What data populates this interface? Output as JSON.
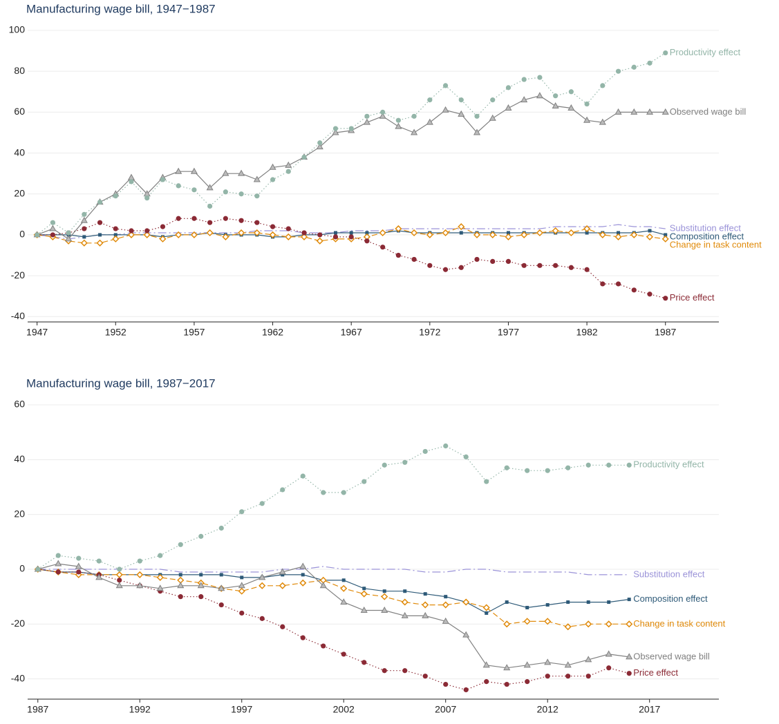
{
  "chart_data": [
    {
      "type": "line",
      "title": "Manufacturing wage bill, 1947−1987",
      "grid": true,
      "x": [
        1947,
        1948,
        1949,
        1950,
        1951,
        1952,
        1953,
        1954,
        1955,
        1956,
        1957,
        1958,
        1959,
        1960,
        1961,
        1962,
        1963,
        1964,
        1965,
        1966,
        1967,
        1968,
        1969,
        1970,
        1971,
        1972,
        1973,
        1974,
        1975,
        1976,
        1977,
        1978,
        1979,
        1980,
        1981,
        1982,
        1983,
        1984,
        1985,
        1986,
        1987
      ],
      "xlim": [
        1946.4,
        1990.4
      ],
      "xticks": [
        1947,
        1952,
        1957,
        1962,
        1967,
        1972,
        1977,
        1982,
        1987
      ],
      "ylim": [
        -42.6,
        100
      ],
      "yticks": [
        -40,
        -20,
        0,
        20,
        40,
        60,
        80,
        100
      ],
      "series": [
        {
          "name": "Substitution effect",
          "color": "#9a92d8",
          "marker": "none",
          "dash": "dashdot",
          "values": [
            0,
            -1,
            -2,
            -1,
            0,
            0,
            1,
            1,
            1,
            1,
            1,
            1,
            1,
            1,
            2,
            2,
            2,
            1,
            1,
            1,
            2,
            2,
            2,
            3,
            3,
            3,
            3,
            3,
            3,
            3,
            3,
            3,
            3,
            4,
            4,
            4,
            4,
            5,
            4,
            4,
            3
          ]
        },
        {
          "name": "Composition effect",
          "color": "#2e5a78",
          "marker": "square",
          "dash": "solid",
          "values": [
            0,
            0,
            0,
            -1,
            0,
            0,
            0,
            0,
            -1,
            0,
            0,
            1,
            0,
            0,
            0,
            -1,
            -1,
            0,
            0,
            1,
            1,
            1,
            1,
            2,
            1,
            1,
            1,
            1,
            1,
            1,
            1,
            1,
            1,
            1,
            1,
            1,
            1,
            1,
            1,
            2,
            0
          ]
        },
        {
          "name": "Change in task content",
          "color": "#e08a0a",
          "marker": "diamond",
          "dash": "dash",
          "values": [
            0,
            -1,
            -3,
            -4,
            -4,
            -2,
            0,
            0,
            -2,
            0,
            0,
            1,
            -1,
            1,
            1,
            0,
            -1,
            -1,
            -3,
            -2,
            -2,
            -1,
            1,
            3,
            1,
            0,
            1,
            4,
            0,
            0,
            -1,
            0,
            1,
            2,
            1,
            3,
            0,
            -1,
            0,
            -1,
            -2
          ]
        },
        {
          "name": "Price effect",
          "color": "#8b2a35",
          "marker": "circle",
          "dash": "dot",
          "values": [
            0,
            0,
            1,
            3,
            6,
            3,
            2,
            2,
            4,
            8,
            8,
            6,
            8,
            7,
            6,
            4,
            3,
            1,
            0,
            -1,
            -1,
            -3,
            -6,
            -10,
            -12,
            -15,
            -17,
            -16,
            -12,
            -13,
            -13,
            -15,
            -15,
            -15,
            -16,
            -17,
            -24,
            -24,
            -27,
            -29,
            -31
          ]
        },
        {
          "name": "Observed wage bill",
          "color": "#808080",
          "marker": "triangle",
          "dash": "solid",
          "values": [
            0,
            3,
            -2,
            7,
            16,
            20,
            28,
            20,
            28,
            31,
            31,
            23,
            30,
            30,
            27,
            33,
            34,
            38,
            43,
            50,
            51,
            55,
            58,
            53,
            50,
            55,
            61,
            59,
            50,
            57,
            62,
            66,
            68,
            63,
            62,
            56,
            55,
            60,
            60,
            60,
            60
          ]
        },
        {
          "name": "Productivity effect",
          "color": "#93b5a8",
          "marker": "circle",
          "dash": "dot",
          "values": [
            0,
            6,
            1,
            10,
            16,
            19,
            26,
            18,
            27,
            24,
            22,
            14,
            21,
            20,
            19,
            27,
            31,
            38,
            45,
            52,
            52,
            58,
            60,
            56,
            58,
            66,
            73,
            66,
            58,
            66,
            72,
            76,
            77,
            68,
            70,
            64,
            73,
            80,
            82,
            84,
            89
          ]
        }
      ]
    },
    {
      "type": "line",
      "title": "Manufacturing wage bill, 1987−2017",
      "grid": true,
      "x": [
        1987,
        1988,
        1989,
        1990,
        1991,
        1992,
        1993,
        1994,
        1995,
        1996,
        1997,
        1998,
        1999,
        2000,
        2001,
        2002,
        2003,
        2004,
        2005,
        2006,
        2007,
        2008,
        2009,
        2010,
        2011,
        2012,
        2013,
        2014,
        2015,
        2016
      ],
      "xlim": [
        1986.5,
        2020.4
      ],
      "xticks": [
        1987,
        1992,
        1997,
        2002,
        2007,
        2012,
        2017
      ],
      "ylim": [
        -47.4,
        60
      ],
      "yticks": [
        -40,
        -20,
        0,
        20,
        40,
        60
      ],
      "series": [
        {
          "name": "Substitution effect",
          "color": "#9a92d8",
          "marker": "none",
          "dash": "dashdot",
          "values": [
            0,
            0,
            0,
            0,
            0,
            0,
            0,
            -1,
            -1,
            -1,
            -1,
            -1,
            0,
            0,
            1,
            0,
            0,
            0,
            0,
            -1,
            -1,
            0,
            0,
            -1,
            -1,
            -1,
            -1,
            -2,
            -2,
            -2
          ]
        },
        {
          "name": "Composition effect",
          "color": "#2e5a78",
          "marker": "square",
          "dash": "solid",
          "values": [
            0,
            -1,
            -1,
            -2,
            -2,
            -2,
            -2,
            -2,
            -2,
            -2,
            -3,
            -3,
            -2,
            -2,
            -4,
            -4,
            -7,
            -8,
            -8,
            -9,
            -10,
            -12,
            -16,
            -12,
            -14,
            -13,
            -12,
            -12,
            -12,
            -11
          ]
        },
        {
          "name": "Change in task content",
          "color": "#e08a0a",
          "marker": "diamond",
          "dash": "dash",
          "values": [
            0,
            -1,
            -2,
            -2,
            -2,
            -2,
            -3,
            -4,
            -5,
            -7,
            -8,
            -6,
            -6,
            -5,
            -4,
            -7,
            -9,
            -10,
            -12,
            -13,
            -13,
            -12,
            -14,
            -20,
            -19,
            -19,
            -21,
            -20,
            -20,
            -20
          ]
        },
        {
          "name": "Price effect",
          "color": "#8b2a35",
          "marker": "circle",
          "dash": "dot",
          "values": [
            0,
            -1,
            -1,
            -2,
            -4,
            -6,
            -8,
            -10,
            -10,
            -13,
            -16,
            -18,
            -21,
            -25,
            -28,
            -31,
            -34,
            -37,
            -37,
            -39,
            -42,
            -44,
            -41,
            -42,
            -41,
            -39,
            -39,
            -39,
            -36,
            -38
          ]
        },
        {
          "name": "Observed wage bill",
          "color": "#808080",
          "marker": "triangle",
          "dash": "solid",
          "values": [
            0,
            2,
            1,
            -3,
            -6,
            -6,
            -7,
            -6,
            -6,
            -7,
            -6,
            -3,
            -1,
            1,
            -6,
            -12,
            -15,
            -15,
            -17,
            -17,
            -19,
            -24,
            -35,
            -36,
            -35,
            -34,
            -35,
            -33,
            -31,
            -32
          ]
        },
        {
          "name": "Productivity effect",
          "color": "#93b5a8",
          "marker": "circle",
          "dash": "dot",
          "values": [
            0,
            5,
            4,
            3,
            0,
            3,
            5,
            9,
            12,
            15,
            21,
            24,
            29,
            34,
            28,
            28,
            32,
            38,
            39,
            43,
            45,
            41,
            32,
            37,
            36,
            36,
            37,
            38,
            38,
            38
          ]
        }
      ]
    }
  ]
}
